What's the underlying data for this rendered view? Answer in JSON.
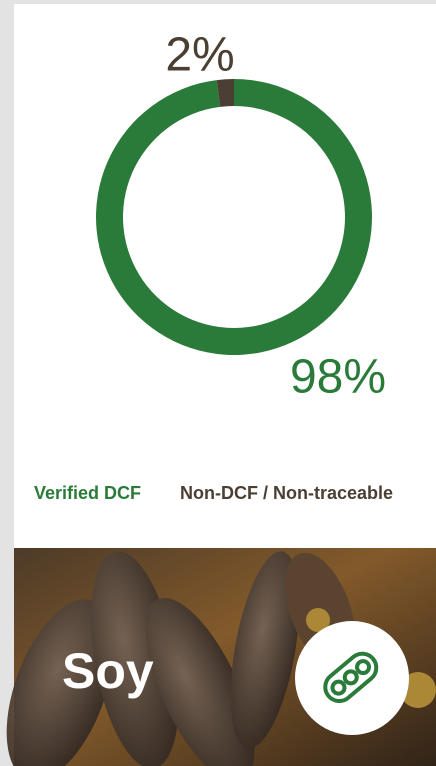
{
  "chart_data": {
    "type": "pie",
    "donut": true,
    "categories": [
      "Verified DCF",
      "Non-DCF / Non-traceable"
    ],
    "values": [
      98,
      2
    ],
    "value_labels": [
      "98%",
      "2%"
    ],
    "colors": [
      "#2a7a3a",
      "#4b3f33"
    ]
  },
  "banner": {
    "title": "Soy"
  }
}
